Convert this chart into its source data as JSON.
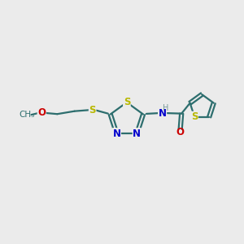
{
  "bg_color": "#ebebeb",
  "bond_color": "#2d6e6e",
  "S_color": "#b8b800",
  "N_color": "#0000cc",
  "O_color": "#cc0000",
  "H_color": "#7a9a9a",
  "font_size": 8.5,
  "fig_size": [
    3.0,
    3.0
  ],
  "dpi": 100,
  "xlim": [
    0,
    10
  ],
  "ylim": [
    0,
    10
  ]
}
